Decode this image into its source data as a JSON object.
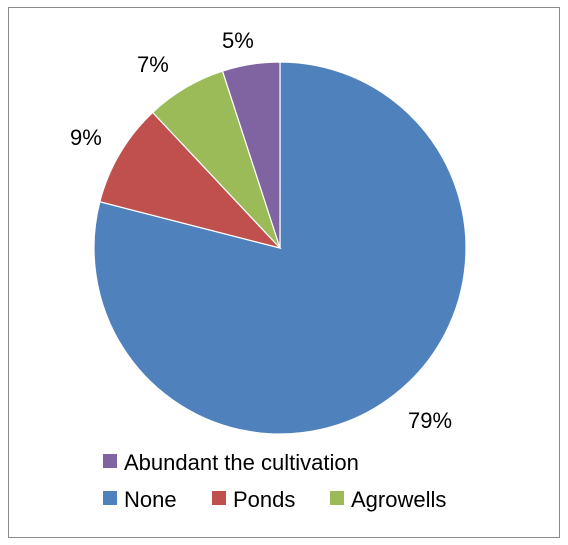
{
  "chart_data": {
    "type": "pie",
    "title": "",
    "slices": [
      {
        "label": "None",
        "value": 79,
        "display": "79%",
        "color": "#4f81bd"
      },
      {
        "label": "Ponds",
        "value": 9,
        "display": "9%",
        "color": "#c0504d"
      },
      {
        "label": "Agrowells",
        "value": 7,
        "display": "7%",
        "color": "#9bbb59"
      },
      {
        "label": "Abundant the cultivation",
        "value": 5,
        "display": "5%",
        "color": "#8064a2"
      }
    ],
    "legend": {
      "position": "bottom",
      "rows": [
        [
          "Abundant the cultivation"
        ],
        [
          "None",
          "Ponds",
          "Agrowells"
        ]
      ]
    }
  }
}
